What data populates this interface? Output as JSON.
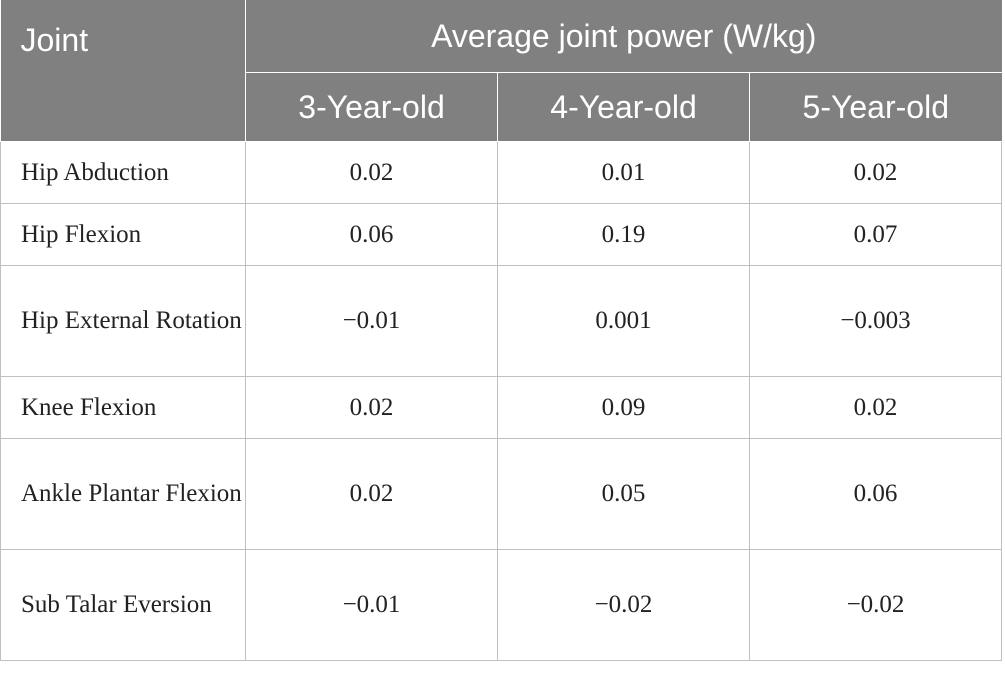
{
  "header": {
    "joint_label": "Joint",
    "group_label": "Average joint power (W/kg)",
    "ages": [
      "3-Year-old",
      "4-Year-old",
      "5-Year-old"
    ]
  },
  "rows": [
    {
      "joint": "Hip Abduction",
      "values": [
        "0.02",
        "0.01",
        "0.02"
      ]
    },
    {
      "joint": "Hip Flexion",
      "values": [
        "0.06",
        "0.19",
        "0.07"
      ]
    },
    {
      "joint": "Hip External Rotation",
      "values": [
        "−0.01",
        "0.001",
        "−0.003"
      ]
    },
    {
      "joint": "Knee Flexion",
      "values": [
        "0.02",
        "0.09",
        "0.02"
      ]
    },
    {
      "joint": "Ankle Plantar Flexion",
      "values": [
        "0.02",
        "0.05",
        "0.06"
      ]
    },
    {
      "joint": "Sub Talar Eversion",
      "values": [
        "−0.01",
        "−0.02",
        "−0.02"
      ]
    }
  ]
}
